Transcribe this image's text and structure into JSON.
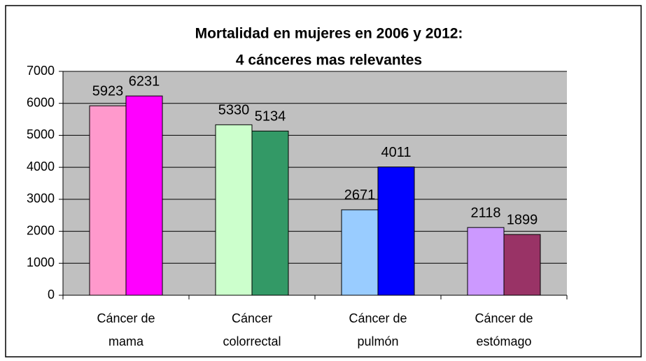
{
  "chart_data": {
    "type": "bar",
    "title": [
      "Mortalidad en mujeres en 2006 y 2012:",
      "4 cánceres mas relevantes"
    ],
    "categories": [
      [
        "Cáncer de",
        "mama"
      ],
      [
        "Cáncer",
        "colorrectal"
      ],
      [
        "Cáncer de",
        "pulmón"
      ],
      [
        "Cáncer de",
        "estómago"
      ]
    ],
    "series": [
      {
        "colors": [
          "#ff99cc",
          "#ccffcc",
          "#99ccff",
          "#cc99ff"
        ],
        "values": [
          5923,
          5330,
          2671,
          2118
        ]
      },
      {
        "colors": [
          "#ff00ff",
          "#339966",
          "#0000ff",
          "#993366"
        ],
        "values": [
          6231,
          5134,
          4011,
          1899
        ]
      }
    ],
    "ylim": [
      0,
      7000
    ],
    "yticks": [
      0,
      1000,
      2000,
      3000,
      4000,
      5000,
      6000,
      7000
    ],
    "grid": true,
    "plot_background": "#c0c0c0"
  }
}
